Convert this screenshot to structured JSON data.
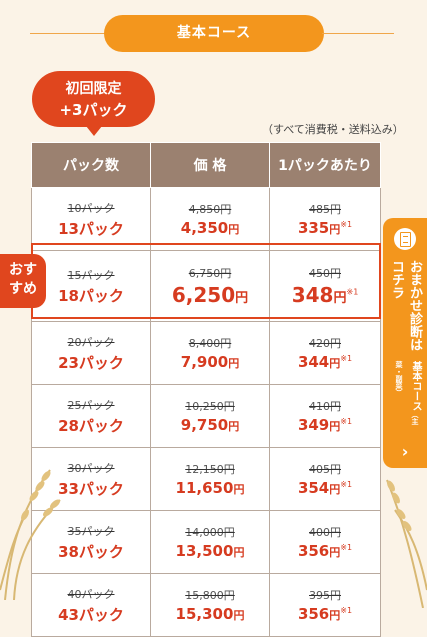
{
  "header": {
    "title": "基本コース"
  },
  "bubble": {
    "line1": "初回限定",
    "line2": "+3パック"
  },
  "tax_note": "（すべて消費税・送料込み）",
  "table": {
    "headers": [
      "パック数",
      "価 格",
      "1パックあたり"
    ],
    "rows": [
      {
        "old_packs": "10パック",
        "new_packs": "13パック",
        "old_price": "4,850円",
        "new_price": "4,350",
        "old_unit": "485円",
        "new_unit": "335"
      },
      {
        "old_packs": "15パック",
        "new_packs": "18パック",
        "old_price": "6,750円",
        "new_price": "6,250",
        "old_unit": "450円",
        "new_unit": "348",
        "recommended": true
      },
      {
        "old_packs": "20パック",
        "new_packs": "23パック",
        "old_price": "8,400円",
        "new_price": "7,900",
        "old_unit": "420円",
        "new_unit": "344"
      },
      {
        "old_packs": "25パック",
        "new_packs": "28パック",
        "old_price": "10,250円",
        "new_price": "9,750",
        "old_unit": "410円",
        "new_unit": "349"
      },
      {
        "old_packs": "30パック",
        "new_packs": "33パック",
        "old_price": "12,150円",
        "new_price": "11,650",
        "old_unit": "405円",
        "new_unit": "354"
      },
      {
        "old_packs": "35パック",
        "new_packs": "38パック",
        "old_price": "14,000円",
        "new_price": "13,500",
        "old_unit": "400円",
        "new_unit": "356"
      },
      {
        "old_packs": "40パック",
        "new_packs": "43パック",
        "old_price": "15,800円",
        "new_price": "15,300",
        "old_unit": "395円",
        "new_unit": "356"
      }
    ],
    "currency": "円",
    "note_mark": "※1"
  },
  "recommend_badge": {
    "line1": "おす",
    "line2": "すめ"
  },
  "side_button": {
    "line1": "基本コース",
    "line1_sub": "（主菜・副菜）",
    "line2": "おまかせ診断はコチラ",
    "arrow": "›",
    "icon": "document-list-icon"
  },
  "colors": {
    "accent": "#f3961d",
    "red": "#e0461e",
    "table_header": "#9b8170",
    "background": "#fbf3e7"
  }
}
